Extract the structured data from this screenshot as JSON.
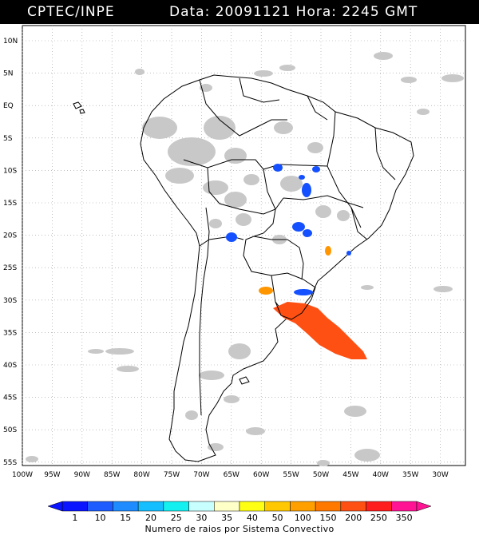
{
  "header": {
    "source": "CPTEC/INPE",
    "date_label": "Data:",
    "date": "20091121",
    "time_label": "Hora:",
    "time": "2245 GMT"
  },
  "axes": {
    "lat_ticks": [
      "10N",
      "5N",
      "EQ",
      "5S",
      "10S",
      "15S",
      "20S",
      "25S",
      "30S",
      "35S",
      "40S",
      "45S",
      "50S",
      "55S"
    ],
    "lon_ticks": [
      "100W",
      "95W",
      "90W",
      "85W",
      "80W",
      "75W",
      "70W",
      "65W",
      "60W",
      "55W",
      "50W",
      "45W",
      "40W",
      "35W",
      "30W"
    ]
  },
  "colorbar": {
    "title": "Numero de raios por Sistema Convectivo",
    "labels": [
      "1",
      "10",
      "15",
      "20",
      "25",
      "30",
      "35",
      "40",
      "50",
      "100",
      "150",
      "200",
      "250",
      "350"
    ],
    "colors": [
      "#0a14ff",
      "#1e5cff",
      "#1e8cff",
      "#14beff",
      "#14f0f0",
      "#c8ffff",
      "#ffffc8",
      "#ffff14",
      "#ffc800",
      "#ffa000",
      "#ff7800",
      "#ff5014",
      "#ff1e1e",
      "#ff1493"
    ]
  },
  "colors": {
    "background": "#ffffff",
    "cloud": "#c8c8c8",
    "low_activity": "#1450ff",
    "mid_activity": "#ff9600",
    "high_activity": "#ff5014"
  }
}
